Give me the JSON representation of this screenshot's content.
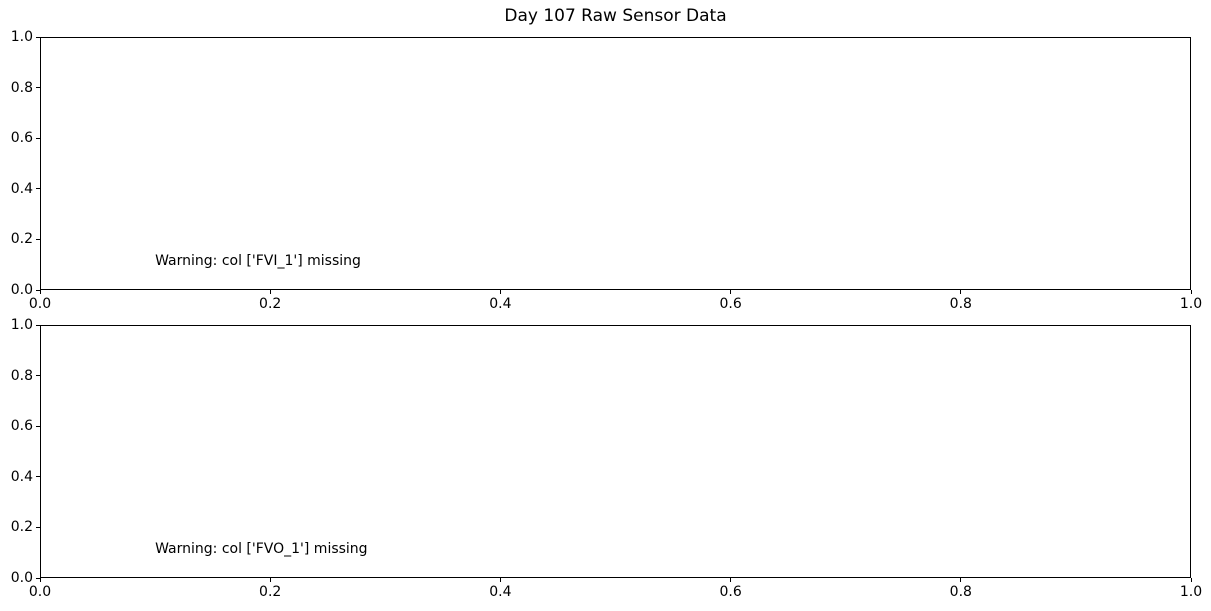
{
  "figure": {
    "title": "Day 107 Raw Sensor Data",
    "background_color": "#ffffff",
    "text_color": "#000000",
    "spine_color": "#000000"
  },
  "chart_data": [
    {
      "type": "line",
      "subplot": "top",
      "title": "",
      "xlabel": "",
      "ylabel": "",
      "xlim": [
        0.0,
        1.0
      ],
      "ylim": [
        0.0,
        1.0
      ],
      "xtick_labels": [
        "0.0",
        "0.2",
        "0.4",
        "0.6",
        "0.8",
        "1.0"
      ],
      "ytick_labels": [
        "0.0",
        "0.2",
        "0.4",
        "0.6",
        "0.8",
        "1.0"
      ],
      "grid": false,
      "legend": "none",
      "series": [],
      "annotations": [
        {
          "text": "Warning: col ['FVI_1'] missing",
          "x": 0.1,
          "y": 0.1
        }
      ]
    },
    {
      "type": "line",
      "subplot": "bottom",
      "title": "",
      "xlabel": "",
      "ylabel": "",
      "xlim": [
        0.0,
        1.0
      ],
      "ylim": [
        0.0,
        1.0
      ],
      "xtick_labels": [
        "0.0",
        "0.2",
        "0.4",
        "0.6",
        "0.8",
        "1.0"
      ],
      "ytick_labels": [
        "0.0",
        "0.2",
        "0.4",
        "0.6",
        "0.8",
        "1.0"
      ],
      "grid": false,
      "legend": "none",
      "series": [],
      "annotations": [
        {
          "text": "Warning: col ['FVO_1'] missing",
          "x": 0.1,
          "y": 0.1
        }
      ]
    }
  ]
}
